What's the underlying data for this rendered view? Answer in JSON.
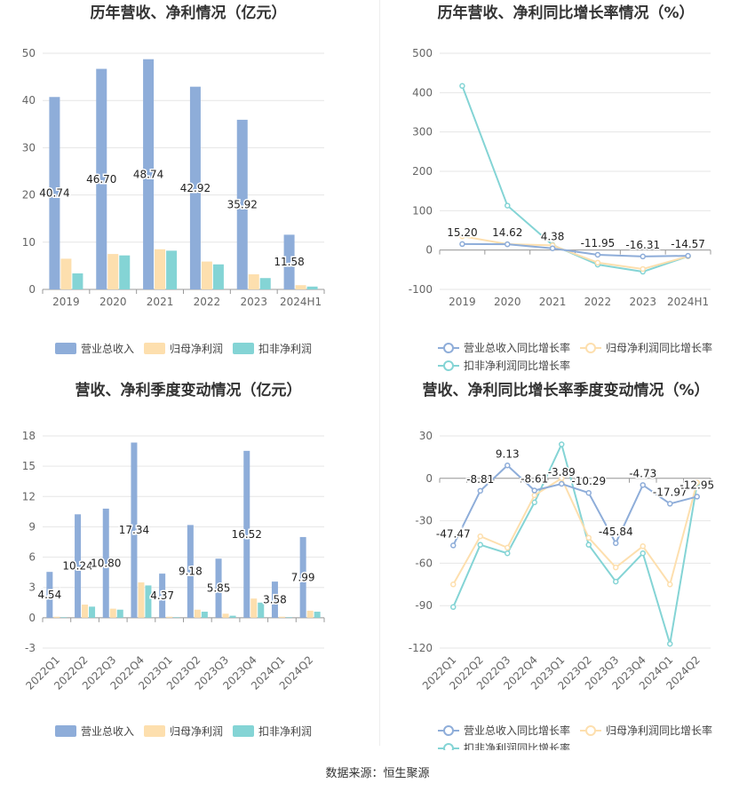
{
  "footer": {
    "source": "数据来源：恒生聚源"
  },
  "colors": {
    "revenue": "#8eadd9",
    "net": "#fddfae",
    "deducted": "#84d4d5",
    "grid": "#e6e6e6",
    "axis": "#999999"
  },
  "chart_data": [
    {
      "id": "annual-amount",
      "type": "bar",
      "title": "历年营收、净利情况（亿元）",
      "categories": [
        "2019",
        "2020",
        "2021",
        "2022",
        "2023",
        "2024H1"
      ],
      "series": [
        {
          "name": "营业总收入",
          "values": [
            40.74,
            46.7,
            48.74,
            42.92,
            35.92,
            11.58
          ],
          "labels": [
            "40.74",
            "46.70",
            "48.74",
            "42.92",
            "35.92",
            "11.58"
          ]
        },
        {
          "name": "归母净利润",
          "values": [
            6.5,
            7.5,
            8.5,
            5.9,
            3.2,
            0.9
          ]
        },
        {
          "name": "扣非净利润",
          "values": [
            3.4,
            7.2,
            8.2,
            5.3,
            2.4,
            0.6
          ]
        }
      ],
      "yticks": [
        "0",
        "10",
        "20",
        "30",
        "40",
        "50"
      ],
      "ylim": [
        0,
        50
      ],
      "legend": "bottom"
    },
    {
      "id": "annual-growth",
      "type": "line",
      "title": "历年营收、净利同比增长率情况（%）",
      "categories": [
        "2019",
        "2020",
        "2021",
        "2022",
        "2023",
        "2024H1"
      ],
      "series": [
        {
          "name": "营业总收入同比增长率",
          "values": [
            15.2,
            14.62,
            4.38,
            -11.95,
            -16.31,
            -14.57
          ],
          "labels": [
            "15.20",
            "14.62",
            "4.38",
            "-11.95",
            "-16.31",
            "-14.57"
          ]
        },
        {
          "name": "归母净利润同比增长率",
          "values": [
            35,
            15,
            12,
            -32,
            -48,
            -16
          ]
        },
        {
          "name": "扣非净利润同比增长率",
          "values": [
            417,
            113,
            13,
            -37,
            -55,
            -16
          ]
        }
      ],
      "yticks": [
        "-100",
        "0",
        "100",
        "200",
        "300",
        "400",
        "500"
      ],
      "ylim": [
        -100,
        500
      ],
      "legend": "bottom"
    },
    {
      "id": "quarterly-amount",
      "type": "bar",
      "title": "营收、净利季度变动情况（亿元）",
      "categories": [
        "2022Q1",
        "2022Q2",
        "2022Q3",
        "2022Q4",
        "2023Q1",
        "2023Q2",
        "2023Q3",
        "2023Q4",
        "2024Q1",
        "2024Q2"
      ],
      "series": [
        {
          "name": "营业总收入",
          "values": [
            4.54,
            10.24,
            10.8,
            17.34,
            4.37,
            9.18,
            5.85,
            16.52,
            3.58,
            7.99
          ],
          "labels": [
            "4.54",
            "10.24",
            "10.80",
            "17.34",
            "4.37",
            "9.18",
            "5.85",
            "16.52",
            "3.58",
            "7.99"
          ]
        },
        {
          "name": "归母净利润",
          "values": [
            0.1,
            1.3,
            0.9,
            3.5,
            0.1,
            0.8,
            0.4,
            1.9,
            0.1,
            0.7
          ]
        },
        {
          "name": "扣非净利润",
          "values": [
            0.05,
            1.1,
            0.8,
            3.2,
            0.05,
            0.6,
            0.2,
            1.5,
            0.05,
            0.6
          ]
        }
      ],
      "yticks": [
        "-3",
        "0",
        "3",
        "6",
        "9",
        "12",
        "15",
        "18"
      ],
      "ylim": [
        -3,
        18
      ],
      "legend": "bottom"
    },
    {
      "id": "quarterly-growth",
      "type": "line",
      "title": "营收、净利同比增长率季度变动情况（%）",
      "categories": [
        "2022Q1",
        "2022Q2",
        "2022Q3",
        "2022Q4",
        "2023Q1",
        "2023Q2",
        "2023Q3",
        "2023Q4",
        "2024Q1",
        "2024Q2"
      ],
      "series": [
        {
          "name": "营业总收入同比增长率",
          "values": [
            -47.47,
            -8.81,
            9.13,
            -8.61,
            -3.89,
            -10.29,
            -45.84,
            -4.73,
            -17.97,
            -12.95
          ],
          "labels": [
            "-47.47",
            "-8.81",
            "9.13",
            "-8.61",
            "-3.89",
            "-10.29",
            "-45.84",
            "-4.73",
            "-17.97",
            "-12.95"
          ]
        },
        {
          "name": "归母净利润同比增长率",
          "values": [
            -75,
            -41,
            -49,
            -12,
            0,
            -42,
            -63,
            -48,
            -75,
            -3
          ]
        },
        {
          "name": "扣非净利润同比增长率",
          "values": [
            -91,
            -47,
            -53,
            -17,
            24,
            -47,
            -73,
            -53,
            -117,
            -4
          ]
        }
      ],
      "yticks": [
        "-120",
        "-90",
        "-60",
        "-30",
        "0",
        "30"
      ],
      "ylim": [
        -120,
        30
      ],
      "legend": "bottom"
    }
  ]
}
